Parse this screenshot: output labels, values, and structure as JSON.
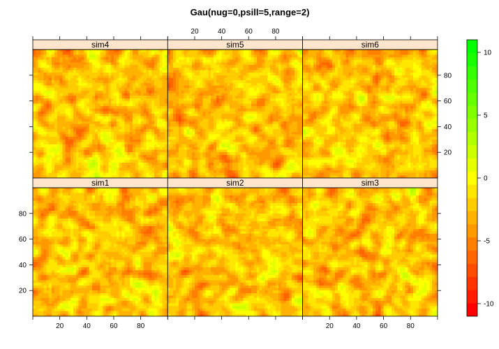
{
  "chart_data": {
    "type": "heatmap",
    "title": "Gau(nug=0,psill=5,range=2)",
    "xlabel": "",
    "ylabel": "",
    "xlim": [
      0,
      100
    ],
    "ylim": [
      0,
      100
    ],
    "x_ticks": [
      20,
      40,
      60,
      80
    ],
    "y_ticks": [
      20,
      40,
      60,
      80
    ],
    "panels": [
      {
        "name": "sim4",
        "row": 0,
        "col": 0,
        "seed": 4
      },
      {
        "name": "sim5",
        "row": 0,
        "col": 1,
        "seed": 5
      },
      {
        "name": "sim6",
        "row": 0,
        "col": 2,
        "seed": 6
      },
      {
        "name": "sim1",
        "row": 1,
        "col": 0,
        "seed": 1
      },
      {
        "name": "sim2",
        "row": 1,
        "col": 1,
        "seed": 2
      },
      {
        "name": "sim3",
        "row": 1,
        "col": 2,
        "seed": 3
      }
    ],
    "colorkey": {
      "range": [
        -11,
        11
      ],
      "ticks": [
        -10,
        -5,
        0,
        5,
        10
      ],
      "colors": [
        "#FF0000",
        "#FF1A00",
        "#FF3300",
        "#FF4D00",
        "#FF6600",
        "#FF8000",
        "#FF9900",
        "#FFB300",
        "#FFCC00",
        "#FFE600",
        "#FFFF00",
        "#E6FF00",
        "#CCFF00",
        "#B3FF00",
        "#99FF00",
        "#80FF00",
        "#66FF00",
        "#4DFF00",
        "#33FF00",
        "#1AFF00",
        "#00FF00"
      ]
    },
    "strip_color": "#FFE5CC",
    "grid": false,
    "legend": "right"
  }
}
